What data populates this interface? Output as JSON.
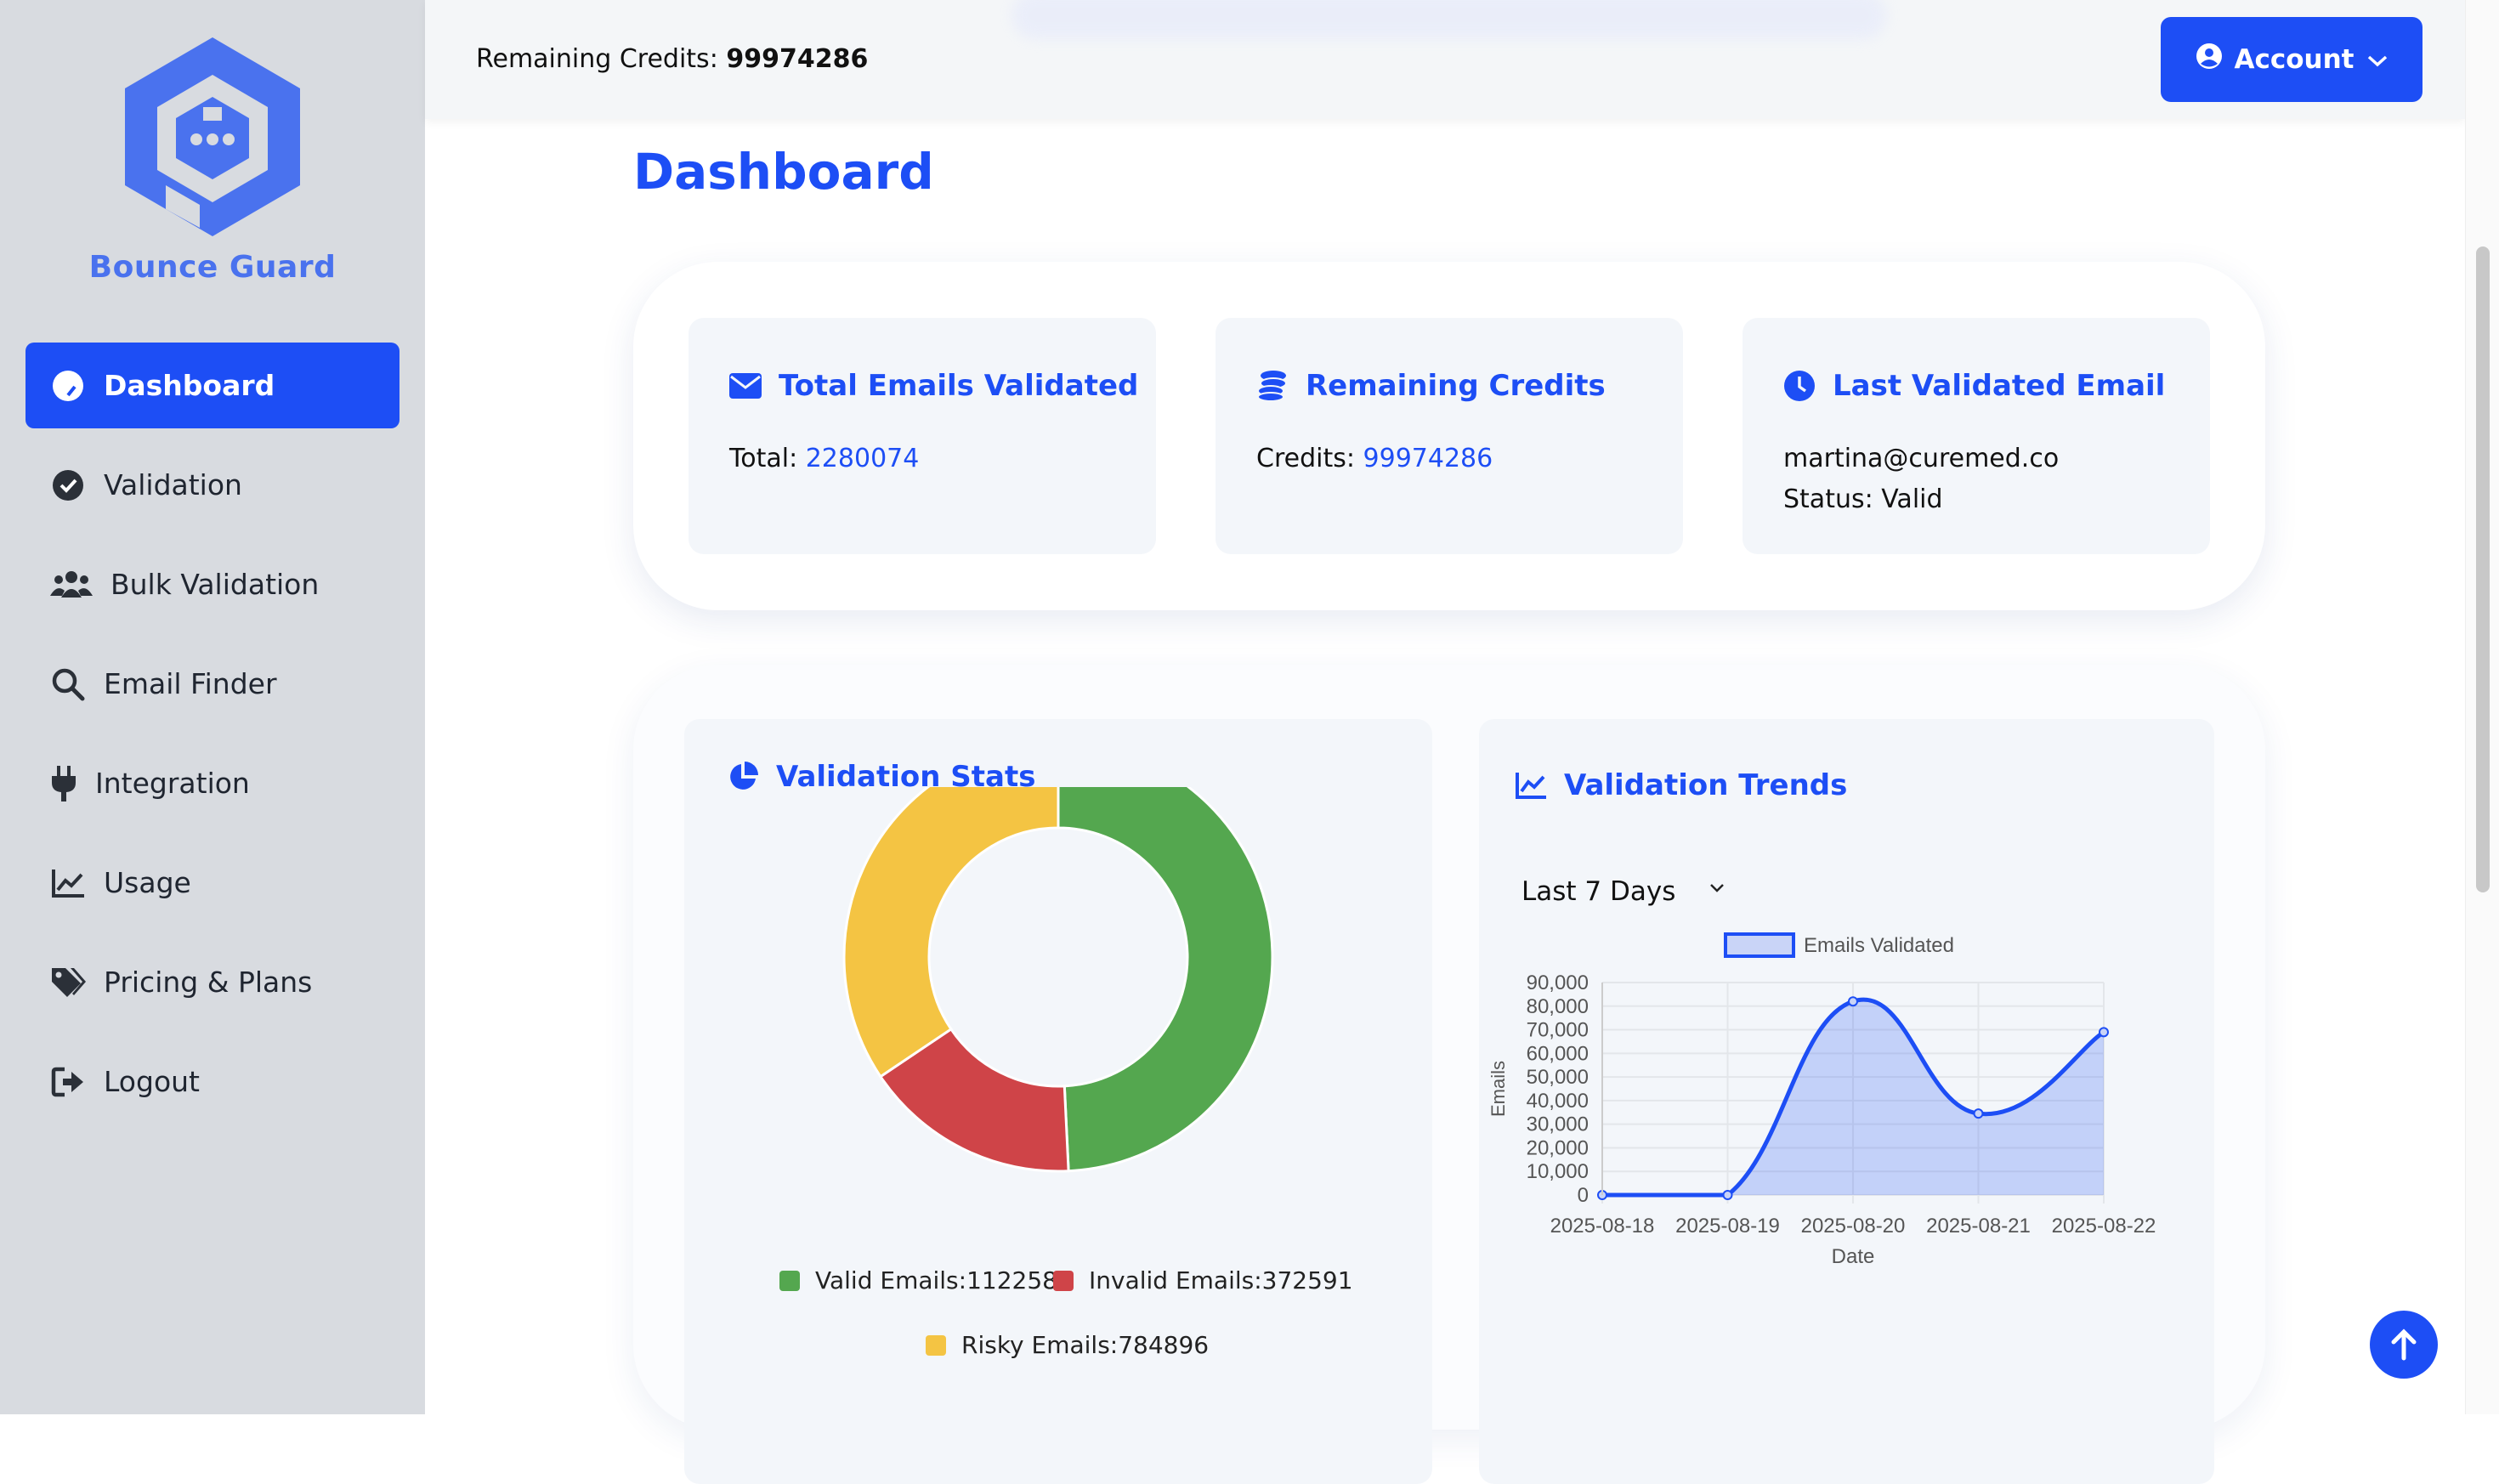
{
  "app": {
    "logo_text": "Bounce Guard"
  },
  "sidebar": {
    "items": [
      {
        "label": "Dashboard",
        "icon": "palette-icon",
        "active": true
      },
      {
        "label": "Validation",
        "icon": "check-circle-icon"
      },
      {
        "label": "Bulk Validation",
        "icon": "users-icon"
      },
      {
        "label": "Email Finder",
        "icon": "search-icon"
      },
      {
        "label": "Integration",
        "icon": "plug-icon"
      },
      {
        "label": "Usage",
        "icon": "line-chart-icon"
      },
      {
        "label": "Pricing & Plans",
        "icon": "tags-icon"
      },
      {
        "label": "Logout",
        "icon": "logout-icon"
      }
    ]
  },
  "topbar": {
    "credits_label": "Remaining Credits:",
    "credits_value": "99974286",
    "account_label": "Account"
  },
  "page": {
    "title": "Dashboard"
  },
  "stats": {
    "total": {
      "title": "Total Emails Validated",
      "label": "Total:",
      "value": "2280074"
    },
    "credits": {
      "title": "Remaining Credits",
      "label": "Credits:",
      "value": "99974286"
    },
    "last": {
      "title": "Last Validated Email",
      "email": "martina@curemed.co",
      "status": "Status: Valid"
    }
  },
  "validation_stats": {
    "title": "Validation Stats",
    "legend": [
      {
        "label": "Valid Emails:1122587",
        "color": "#54a74f"
      },
      {
        "label": "Invalid Emails:372591",
        "color": "#cf4448"
      },
      {
        "label": "Risky Emails:784896",
        "color": "#f4c443"
      }
    ]
  },
  "validation_trends": {
    "title": "Validation Trends",
    "range_select": "Last 7 Days"
  },
  "colors": {
    "accent": "#1d4ef5",
    "valid": "#54a74f",
    "invalid": "#cf4448",
    "risky": "#f4c443"
  },
  "chart_data": [
    {
      "type": "pie",
      "title": "",
      "categories": [
        "Valid Emails",
        "Invalid Emails",
        "Risky Emails"
      ],
      "values": [
        1122587,
        372591,
        784896
      ],
      "donut": true
    },
    {
      "type": "area",
      "title": "",
      "legend": "top",
      "series": [
        {
          "name": "Emails Validated",
          "values": [
            0,
            0,
            82000,
            34500,
            69000
          ]
        }
      ],
      "categories": [
        "2025-08-18",
        "2025-08-19",
        "2025-08-20",
        "2025-08-21",
        "2025-08-22"
      ],
      "xlabel": "Date",
      "ylabel": "Emails",
      "ylim": [
        0,
        90000
      ],
      "yticks": [
        "0",
        "10,000",
        "20,000",
        "30,000",
        "40,000",
        "50,000",
        "60,000",
        "70,000",
        "80,000",
        "90,000"
      ],
      "grid": true
    }
  ]
}
